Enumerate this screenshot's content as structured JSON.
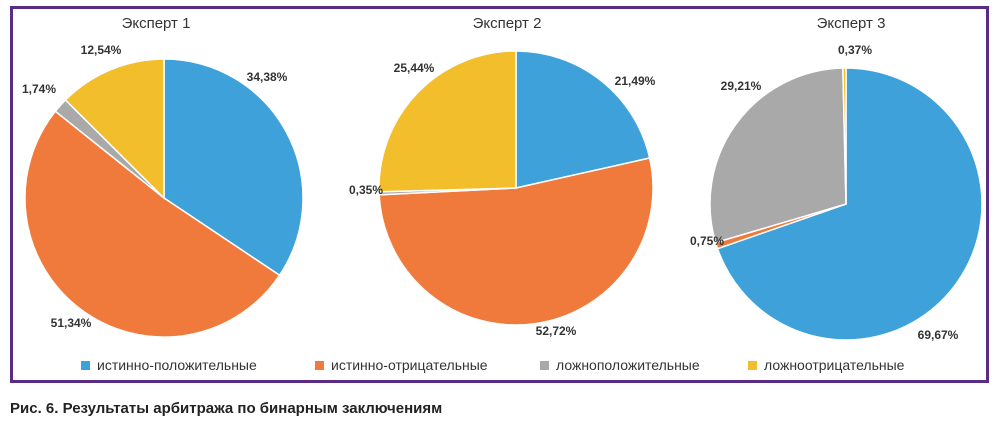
{
  "categories": [
    "истинно-положительные",
    "истинно-отрицательные",
    "ложноположительные",
    "ложноотрицательные"
  ],
  "colors": [
    "#3fa1d9",
    "#ef7a3c",
    "#a9a9a9",
    "#f3be2b"
  ],
  "chart_data": [
    {
      "type": "pie",
      "title": "Эксперт 1",
      "series": [
        {
          "values": [
            34.38,
            51.34,
            1.74,
            12.54
          ]
        }
      ],
      "labels": [
        "34,38%",
        "51,34%",
        "1,74%",
        "12,54%"
      ]
    },
    {
      "type": "pie",
      "title": "Эксперт 2",
      "series": [
        {
          "values": [
            21.49,
            52.72,
            0.35,
            25.44
          ]
        }
      ],
      "labels": [
        "21,49%",
        "52,72%",
        "0,35%",
        "25,44%"
      ]
    },
    {
      "type": "pie",
      "title": "Эксперт 3",
      "series": [
        {
          "values": [
            69.67,
            0.75,
            29.21,
            0.37
          ]
        }
      ],
      "labels": [
        "69,67%",
        "0,75%",
        "29,21%",
        "0,37%"
      ]
    }
  ],
  "legend_position": "bottom",
  "caption": "Рис. 6. Результаты арбитража по бинарным заключениям"
}
